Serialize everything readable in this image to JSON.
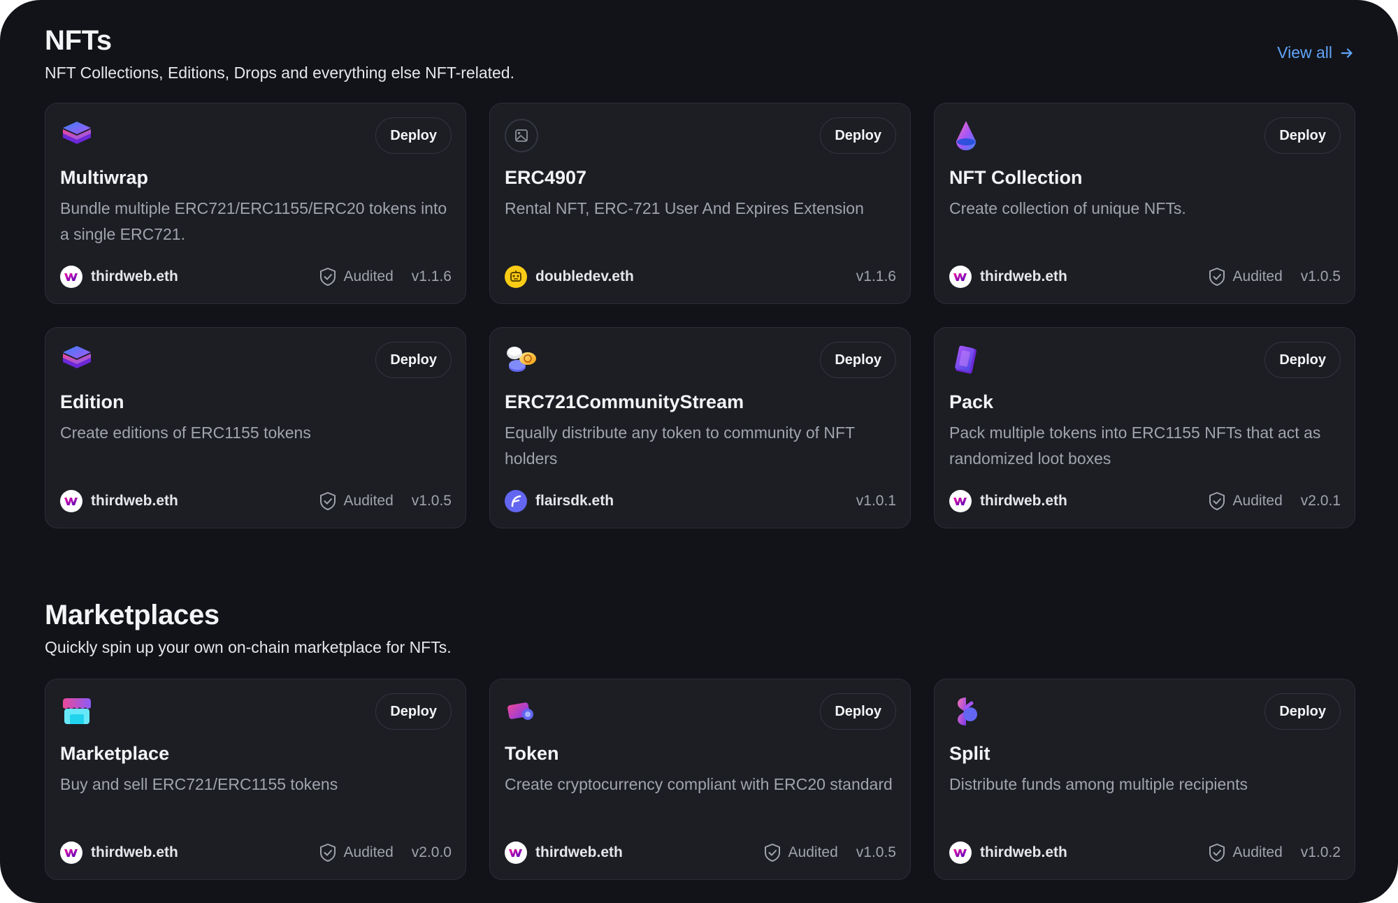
{
  "nfts": {
    "title": "NFTs",
    "subtitle": "NFT Collections, Editions, Drops and everything else NFT-related.",
    "view_all": "View all",
    "cards": [
      {
        "title": "Multiwrap",
        "description": "Bundle multiple ERC721/ERC1155/ERC20 tokens into a single ERC721.",
        "deploy": "Deploy",
        "author": "thirdweb.eth",
        "audited": "Audited",
        "version": "v1.1.6",
        "icon": "layers-icon"
      },
      {
        "title": "ERC4907",
        "description": "Rental NFT, ERC-721 User And Expires Extension",
        "deploy": "Deploy",
        "author": "doubledev.eth",
        "audited": "",
        "version": "v1.1.6",
        "icon": "image-icon"
      },
      {
        "title": "NFT Collection",
        "description": "Create collection of unique NFTs.",
        "deploy": "Deploy",
        "author": "thirdweb.eth",
        "audited": "Audited",
        "version": "v1.0.5",
        "icon": "drop-icon"
      },
      {
        "title": "Edition",
        "description": "Create editions of ERC1155 tokens",
        "deploy": "Deploy",
        "author": "thirdweb.eth",
        "audited": "Audited",
        "version": "v1.0.5",
        "icon": "layers-icon"
      },
      {
        "title": "ERC721CommunityStream",
        "description": "Equally distribute any token to community of NFT holders",
        "deploy": "Deploy",
        "author": "flairsdk.eth",
        "audited": "",
        "version": "v1.0.1",
        "icon": "coins-icon"
      },
      {
        "title": "Pack",
        "description": "Pack multiple tokens into ERC1155 NFTs that act as randomized loot boxes",
        "deploy": "Deploy",
        "author": "thirdweb.eth",
        "audited": "Audited",
        "version": "v2.0.1",
        "icon": "pack-icon"
      }
    ]
  },
  "marketplaces": {
    "title": "Marketplaces",
    "subtitle": "Quickly spin up your own on-chain marketplace for NFTs.",
    "cards": [
      {
        "title": "Marketplace",
        "description": "Buy and sell ERC721/ERC1155 tokens",
        "deploy": "Deploy",
        "author": "thirdweb.eth",
        "audited": "Audited",
        "version": "v2.0.0",
        "icon": "store-icon"
      },
      {
        "title": "Token",
        "description": "Create cryptocurrency compliant with ERC20 standard",
        "deploy": "Deploy",
        "author": "thirdweb.eth",
        "audited": "Audited",
        "version": "v1.0.5",
        "icon": "token-icon"
      },
      {
        "title": "Split",
        "description": "Distribute funds among multiple recipients",
        "deploy": "Deploy",
        "author": "thirdweb.eth",
        "audited": "Audited",
        "version": "v1.0.2",
        "icon": "split-icon"
      }
    ]
  },
  "colors": {
    "background": "#121318",
    "card": "#1c1e24",
    "card_border": "#2b2e36",
    "accent_link": "#60a5fa",
    "muted_text": "#a1a4ad"
  }
}
